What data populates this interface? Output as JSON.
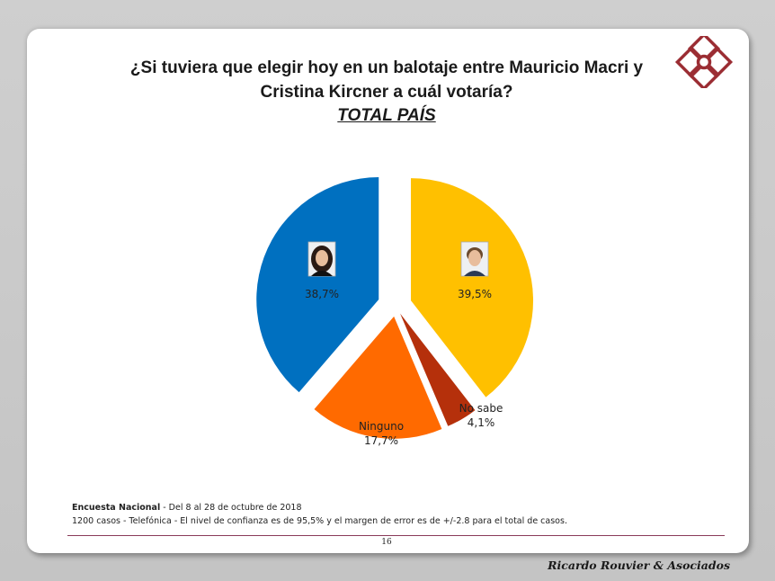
{
  "slide": {
    "title_line1": "¿Si tuviera que elegir hoy en un balotaje entre Mauricio Macri y",
    "title_line2": "Cristina Kircner a cuál votaría?",
    "subtitle": "TOTAL PAÍS",
    "page_number": "16",
    "brand": "Ricardo Rouvier & Asociados",
    "logo_icon": "interlocking-diamonds-logo-icon",
    "logo_color": "#9b2d33"
  },
  "footer": {
    "survey_name": "Encuesta Nacional",
    "survey_dates": " - Del 8 al 28 de octubre de 2018",
    "method_line": "1200 casos - Telefónica   - El nivel de confianza es de 95,5% y el margen de error es de +/-2.8 para el total de casos."
  },
  "chart_data": {
    "type": "pie",
    "title": "",
    "slices": [
      {
        "value": 39.5,
        "label": "39,5%",
        "name": "",
        "color": "#ffc000",
        "icon": "macri-photo-icon"
      },
      {
        "value": 4.1,
        "label": "4,1%",
        "name": "No sabe",
        "color": "#b5300b",
        "icon": ""
      },
      {
        "value": 17.7,
        "label": "17,7%",
        "name": "Ninguno",
        "color": "#ff6a00",
        "icon": ""
      },
      {
        "value": 38.7,
        "label": "38,7%",
        "name": "",
        "color": "#0070c0",
        "icon": "kirchner-photo-icon"
      }
    ]
  }
}
